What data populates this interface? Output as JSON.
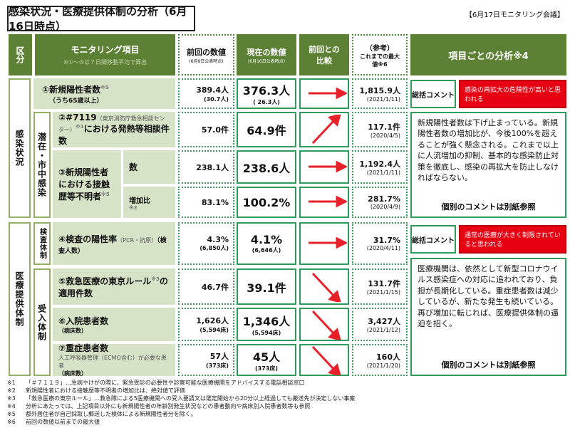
{
  "title": "感染状況・医療提供体制の分析（6月16日時点）",
  "meeting": "【6月17日モニタリング会議】",
  "header": {
    "category": "区分",
    "item": "モニタリング項目",
    "item_note": "※①～⑤は７日間移動平均で算出",
    "prev": "前回の数値",
    "prev_note": "(6月9日公表時点)",
    "current": "現在の数値",
    "current_note": "(6月16日公表時点)",
    "compare": "前回との比較",
    "ref": "（参考）",
    "ref2": "これまでの最大値※6",
    "analysis": "項目ごとの分析※4"
  },
  "sections": {
    "infection": "感染状況",
    "medical": "医療提供体制",
    "latent": "潜在・市中感染",
    "testing": "検査体制",
    "acceptance": "受入体制"
  },
  "rows": [
    {
      "label": "①新規陽性者数",
      "sup": "※5",
      "sub": "（うち65歳以上）",
      "prev": "389.4人",
      "prev_sub": "(30.7人)",
      "cur": "376.3人",
      "cur_sub": "( 26.3人)",
      "arrow": "right",
      "max": "1,815.9人",
      "max_date": "(2021/1/11)"
    },
    {
      "label": "②#7119",
      "note": "（東京消防庁救急相談センター）",
      "sup": "※1",
      "label2": "における発熱等相談件数",
      "prev": "57.0件",
      "cur": "64.9件",
      "arrow": "up-right",
      "max": "117.1件",
      "max_date": "(2020/4/5)"
    },
    {
      "label": "③新規陽性者における接触歴等不明者",
      "sup": "※5",
      "sublabel": "数",
      "prev": "238.1人",
      "cur": "238.6人",
      "arrow": "right",
      "max": "1,192.4人",
      "max_date": "(2021/1/11)"
    },
    {
      "sublabel": "増加比",
      "sublabel_sup": "※2",
      "prev": "83.1%",
      "cur": "100.2%",
      "arrow": "right",
      "max": "281.7%",
      "max_date": "(2020/4/9)"
    },
    {
      "label": "④検査の陽性率",
      "note": "（PCR・抗原）",
      "sub": "（検査人数）",
      "prev": "4.3%",
      "prev_sub": "(6,850人)",
      "cur": "4.1%",
      "cur_sub": "(6,646人)",
      "arrow": "right",
      "max": "31.7%",
      "max_date": "(2020/4/11)"
    },
    {
      "label": "⑤救急医療の東京ルール",
      "sup": "※3",
      "label2": "の適用件数",
      "prev": "46.7件",
      "cur": "39.1件",
      "arrow": "down-right",
      "max": "131.7件",
      "max_date": "(2021/1/15)"
    },
    {
      "label": "⑥入院患者数",
      "sub": "（病床数）",
      "prev": "1,626人",
      "prev_sub": "(5,594床)",
      "cur": "1,346人",
      "cur_sub": "(5,594床)",
      "arrow": "down-right",
      "max": "3,427人",
      "max_date": "(2021/1/12)"
    },
    {
      "label": "⑦重症患者数",
      "note": "人工呼吸器管理（ECMO含む）が必要な患者",
      "sub": "（病床数）",
      "prev": "57人",
      "prev_sub": "(373床)",
      "cur": "45人",
      "cur_sub": "(373床)",
      "arrow": "down-right",
      "max": "160人",
      "max_date": "(2021/1/20)"
    }
  ],
  "analysis": {
    "summary_label": "総括コメント",
    "infection_summary": "感染の再拡大の危険性が高いと思われる",
    "infection_text": "新規陽性者数は下げ止まっている。新規陽性者数の増加比が、今後100%を超えることが強く懸念される。これまで以上に人流増加の抑制、基本的な感染防止対策を徹底し、感染の再拡大を防止しなければならない。",
    "medical_summary": "通常の医療が大きく制限されていると思われる",
    "medical_text": "医療機関は、依然として新型コロナウイルス感染症への対応に追われており、負担が長期化している。重症患者数は減少しているが、新たな発生も続いている。再び増加に転じれば、医療提供体制の逼迫を招く。",
    "ref_note": "個別のコメントは別紙参照"
  },
  "footnotes": [
    {
      "mark": "※1",
      "text": "「＃７１１９」…急病やけがの際に、緊急受診の必要性や診察可能な医療機関をアドバイスする電話相談窓口"
    },
    {
      "mark": "※2",
      "text": "新規陽性者における接触歴等不明者の増加比は、絶対値で評価"
    },
    {
      "mark": "※3",
      "text": "「救急医療の東京ルール」…救急隊による5医療機関への受入要請又は選定開始から20分以上経過しても搬送先が決定しない事案"
    },
    {
      "mark": "※4",
      "text": "分析にあたっては、上記項目以外にも新規陽性者の年齢別発生状況などの患者動向や病床別入院患者数等も参照"
    },
    {
      "mark": "※5",
      "text": "都外居住者が自己採取し郵送した検体による新規陽性者分を除く。"
    },
    {
      "mark": "※6",
      "text": "前回の数値以前までの最大値"
    }
  ],
  "colors": {
    "header_green": "#5c8034",
    "item_bg": "#d7e3c7",
    "border_green": "#2e9a5c",
    "alert_red": "#e60012",
    "arrow_red": "#e8202a"
  }
}
